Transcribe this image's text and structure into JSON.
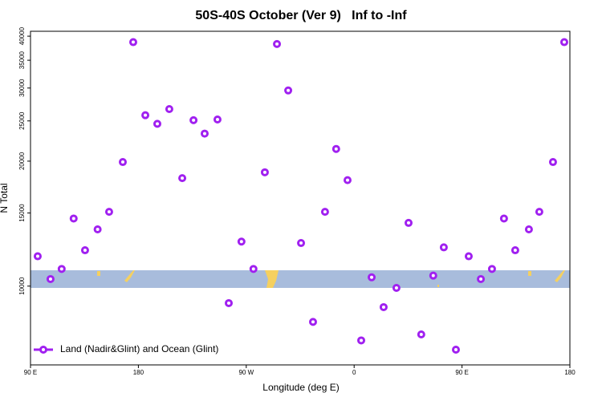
{
  "chart_data": {
    "type": "scatter",
    "title": "50S-40S October (Ver 9)   Inf to -Inf",
    "x_label": "Longitude (deg E)",
    "y_label": "N Total",
    "xlim": [
      90,
      540
    ],
    "xticks": [
      {
        "value": 90,
        "label": "90 E"
      },
      180,
      {
        "value": 270,
        "label": "90 W"
      },
      {
        "value": 360,
        "label": "0"
      },
      {
        "value": 450,
        "label": "90 E"
      },
      {
        "value": 540,
        "label": "180"
      }
    ],
    "ylim": [
      6460,
      41100
    ],
    "yticks": [
      10000,
      15000,
      20000,
      25000,
      30000,
      35000,
      40000
    ],
    "log_y": true,
    "legend": "bottom-left",
    "series": [
      {
        "name": "Land (Nadir&Glint) and Ocean (Glint)",
        "color": "#a020f0",
        "x": [
          96,
          106.7,
          116,
          126,
          135.5,
          146,
          155.6,
          167,
          175.7,
          185.8,
          195.8,
          205.8,
          216.6,
          226,
          235.3,
          246,
          255.4,
          266,
          276,
          285.5,
          295.6,
          305,
          315.7,
          325.7,
          335.7,
          345,
          354.5,
          365.9,
          374.6,
          384.6,
          395.3,
          405.4,
          416,
          426,
          434.8,
          444.9,
          455.6,
          465.7,
          475,
          485,
          494.4,
          505.8,
          514.5,
          525.9,
          535.3
        ],
        "values": [
          11800,
          10400,
          11000,
          14550,
          12200,
          13700,
          15100,
          19900,
          38700,
          25800,
          24600,
          26700,
          18200,
          25100,
          23300,
          25200,
          9100,
          12800,
          11000,
          18800,
          38300,
          29600,
          12700,
          8200,
          15100,
          21400,
          18000,
          7400,
          10500,
          8900,
          9900,
          14200,
          7650,
          10600,
          12400,
          7030,
          11800,
          10400,
          11000,
          14550,
          12200,
          13700,
          15100,
          19900,
          38700
        ]
      }
    ]
  }
}
